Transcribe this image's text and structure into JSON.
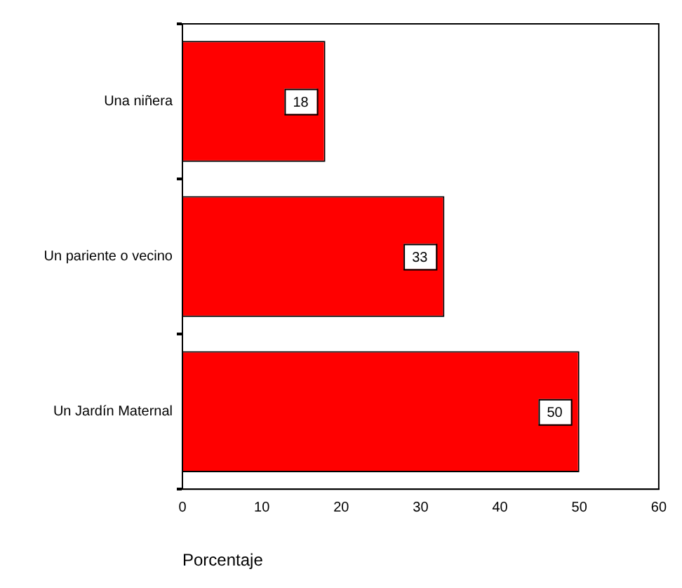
{
  "chart_data": {
    "type": "bar",
    "orientation": "horizontal",
    "categories": [
      "Una niñera",
      "Un pariente o vecino",
      "Un Jardín Maternal"
    ],
    "values": [
      18,
      33,
      50
    ],
    "color": "#ff0000",
    "xlabel": "Porcentaje",
    "xlim": [
      0,
      60
    ],
    "xticks": [
      0,
      10,
      20,
      30,
      40,
      50,
      60
    ],
    "data_labels": true,
    "grid": false,
    "legend": false
  }
}
